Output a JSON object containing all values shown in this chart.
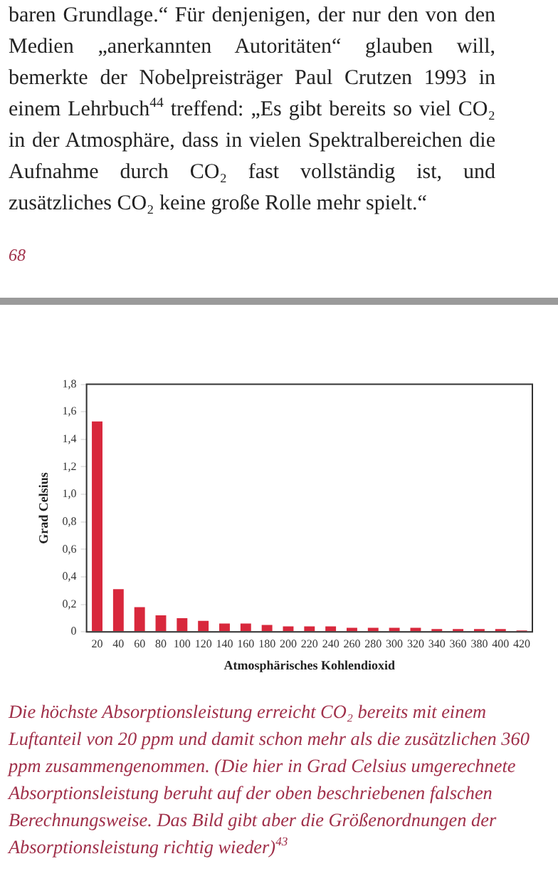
{
  "chart_data": {
    "type": "bar",
    "annotations": [
      "baren Grundlage.“ Für denjenigen, der nur den von den Medien „anerkannten Autoritäten“ glauben will, bemerkte der Nobelpreisträger Paul Crutzen 1993 in einem Lehrbuch$^{44}$ treffend: „Es gibt bereits so viel CO₂ in der Atmosphäre, dass in vielen Spektralbereichen die Aufnahme durch CO₂ fast vollständig ist, und zusätzliches CO₂ keine große Rolle mehr spielt.“",
      "68",
      "Die höchste Absorptionsleistung erreicht CO₂ bereits mit einem Luftanteil von 20 ppm und damit schon mehr als die zusätzlichen 360 ppm zusammengenommen. (Die hier in Grad Celsius umgerechnete Absorptionsleistung beruht auf der oben beschriebenen falschen Berechnungsweise. Das Bild gibt aber die Größenordnungen der Absorptionsleistung richtig wieder)$^{43}$"
    ],
    "xlabel": "Atmosphärisches Kohlendioxid",
    "ylabel": "Grad Celsius",
    "categories": [
      "20",
      "40",
      "60",
      "80",
      "100",
      "120",
      "140",
      "160",
      "180",
      "200",
      "220",
      "240",
      "260",
      "280",
      "300",
      "320",
      "340",
      "360",
      "380",
      "400",
      "420"
    ],
    "values": [
      1.53,
      0.31,
      0.18,
      0.12,
      0.1,
      0.08,
      0.06,
      0.06,
      0.05,
      0.04,
      0.04,
      0.04,
      0.03,
      0.03,
      0.03,
      0.03,
      0.02,
      0.02,
      0.02,
      0.02,
      0.01
    ],
    "color": "#d8283c",
    "ylim": [
      0,
      1.8
    ],
    "yticks": [
      0,
      {
        "value": 0.2,
        "label": "0,2"
      },
      {
        "value": 0.4,
        "label": "0,4"
      },
      {
        "value": 0.6,
        "label": "0,6"
      },
      {
        "value": 0.8,
        "label": "0,8"
      },
      {
        "value": 1.0,
        "label": "1,0"
      },
      {
        "value": 1.2,
        "label": "1,2"
      },
      {
        "value": 1.4,
        "label": "1,4"
      },
      {
        "value": 1.6,
        "label": "1,6"
      },
      {
        "value": 1.8,
        "label": "1,8"
      }
    ],
    "grid": false
  }
}
